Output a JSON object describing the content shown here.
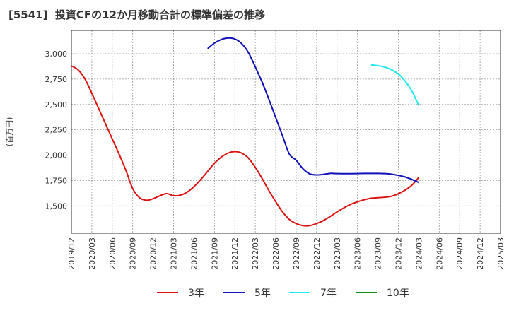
{
  "chart_data": {
    "type": "line",
    "title": "[5541]  投資CFの12か月移動合計の標準偏差の推移",
    "xlabel": "",
    "ylabel": "(百万円)",
    "ylim": [
      1230,
      3230
    ],
    "yticks": [
      1500,
      1750,
      2000,
      2250,
      2500,
      2750,
      3000
    ],
    "ytick_labels": [
      "1,500",
      "1,750",
      "2,000",
      "2,250",
      "2,500",
      "2,750",
      "3,000"
    ],
    "x_categories": [
      "2019/12",
      "2020/03",
      "2020/06",
      "2020/09",
      "2020/12",
      "2021/03",
      "2021/06",
      "2021/09",
      "2021/12",
      "2022/03",
      "2022/06",
      "2022/09",
      "2022/12",
      "2023/03",
      "2023/06",
      "2023/09",
      "2023/12",
      "2024/03",
      "2024/06",
      "2024/09",
      "2024/12",
      "2025/03"
    ],
    "grid": true,
    "legend_position": "bottom",
    "series": [
      {
        "name": "3年",
        "color": "#dd1111",
        "points": [
          [
            "2019/12",
            2880
          ],
          [
            "2020/01",
            2840
          ],
          [
            "2020/02",
            2750
          ],
          [
            "2020/03",
            2610
          ],
          [
            "2020/04",
            2460
          ],
          [
            "2020/05",
            2310
          ],
          [
            "2020/06",
            2160
          ],
          [
            "2020/07",
            2010
          ],
          [
            "2020/08",
            1850
          ],
          [
            "2020/09",
            1670
          ],
          [
            "2020/10",
            1580
          ],
          [
            "2020/11",
            1555
          ],
          [
            "2020/12",
            1570
          ],
          [
            "2021/01",
            1600
          ],
          [
            "2021/02",
            1620
          ],
          [
            "2021/03",
            1600
          ],
          [
            "2021/04",
            1605
          ],
          [
            "2021/05",
            1635
          ],
          [
            "2021/06",
            1690
          ],
          [
            "2021/07",
            1760
          ],
          [
            "2021/08",
            1840
          ],
          [
            "2021/09",
            1920
          ],
          [
            "2021/10",
            1980
          ],
          [
            "2021/11",
            2020
          ],
          [
            "2021/12",
            2035
          ],
          [
            "2022/01",
            2020
          ],
          [
            "2022/02",
            1970
          ],
          [
            "2022/03",
            1880
          ],
          [
            "2022/04",
            1770
          ],
          [
            "2022/05",
            1650
          ],
          [
            "2022/06",
            1540
          ],
          [
            "2022/07",
            1440
          ],
          [
            "2022/08",
            1365
          ],
          [
            "2022/09",
            1325
          ],
          [
            "2022/10",
            1305
          ],
          [
            "2022/11",
            1305
          ],
          [
            "2022/12",
            1325
          ],
          [
            "2023/01",
            1355
          ],
          [
            "2023/02",
            1395
          ],
          [
            "2023/03",
            1440
          ],
          [
            "2023/04",
            1480
          ],
          [
            "2023/05",
            1515
          ],
          [
            "2023/06",
            1540
          ],
          [
            "2023/07",
            1560
          ],
          [
            "2023/08",
            1575
          ],
          [
            "2023/09",
            1580
          ],
          [
            "2023/10",
            1585
          ],
          [
            "2023/11",
            1595
          ],
          [
            "2023/12",
            1620
          ],
          [
            "2024/01",
            1655
          ],
          [
            "2024/02",
            1705
          ],
          [
            "2024/03",
            1780
          ]
        ]
      },
      {
        "name": "5年",
        "color": "#1111bb",
        "points": [
          [
            "2021/08",
            3050
          ],
          [
            "2021/09",
            3105
          ],
          [
            "2021/10",
            3140
          ],
          [
            "2021/11",
            3155
          ],
          [
            "2021/12",
            3145
          ],
          [
            "2022/01",
            3100
          ],
          [
            "2022/02",
            3010
          ],
          [
            "2022/03",
            2870
          ],
          [
            "2022/04",
            2720
          ],
          [
            "2022/05",
            2550
          ],
          [
            "2022/06",
            2370
          ],
          [
            "2022/07",
            2190
          ],
          [
            "2022/08",
            2010
          ],
          [
            "2022/09",
            1950
          ],
          [
            "2022/10",
            1865
          ],
          [
            "2022/11",
            1815
          ],
          [
            "2022/12",
            1805
          ],
          [
            "2023/01",
            1810
          ],
          [
            "2023/02",
            1820
          ],
          [
            "2023/03",
            1818
          ],
          [
            "2023/04",
            1817
          ],
          [
            "2023/05",
            1817
          ],
          [
            "2023/06",
            1818
          ],
          [
            "2023/07",
            1820
          ],
          [
            "2023/08",
            1820
          ],
          [
            "2023/09",
            1820
          ],
          [
            "2023/10",
            1818
          ],
          [
            "2023/11",
            1812
          ],
          [
            "2023/12",
            1800
          ],
          [
            "2024/01",
            1785
          ],
          [
            "2024/02",
            1760
          ],
          [
            "2024/03",
            1730
          ]
        ]
      },
      {
        "name": "7年",
        "color": "#22e8f0",
        "points": [
          [
            "2023/08",
            2890
          ],
          [
            "2023/09",
            2882
          ],
          [
            "2023/10",
            2868
          ],
          [
            "2023/11",
            2842
          ],
          [
            "2023/12",
            2800
          ],
          [
            "2024/01",
            2730
          ],
          [
            "2024/02",
            2630
          ],
          [
            "2024/03",
            2490
          ]
        ]
      },
      {
        "name": "10年",
        "color": "#118811",
        "points": []
      }
    ]
  }
}
